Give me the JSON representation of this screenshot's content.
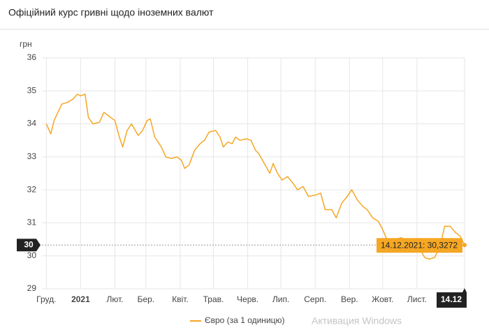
{
  "chart_data": {
    "type": "line",
    "title": "Офіційний курс гривні щодо іноземних валют",
    "y_axis_label": "грн",
    "x": [
      "01.12.2020",
      "05.12.2020",
      "08.12.2020",
      "15.12.2020",
      "20.12.2020",
      "25.12.2020",
      "29.12.2020",
      "01.01.2021",
      "05.01.2021",
      "08.01.2021",
      "12.01.2021",
      "18.01.2021",
      "22.01.2021",
      "28.01.2021",
      "01.02.2021",
      "05.02.2021",
      "08.02.2021",
      "12.02.2021",
      "16.02.2021",
      "22.02.2021",
      "26.02.2021",
      "02.03.2021",
      "05.03.2021",
      "09.03.2021",
      "15.03.2021",
      "19.03.2021",
      "24.03.2021",
      "29.03.2021",
      "02.04.2021",
      "05.04.2021",
      "09.04.2021",
      "14.04.2021",
      "19.04.2021",
      "23.04.2021",
      "27.04.2021",
      "03.05.2021",
      "07.05.2021",
      "10.05.2021",
      "14.05.2021",
      "18.05.2021",
      "21.05.2021",
      "25.05.2021",
      "31.05.2021",
      "04.06.2021",
      "08.06.2021",
      "11.06.2021",
      "16.06.2021",
      "21.06.2021",
      "24.06.2021",
      "28.06.2021",
      "02.07.2021",
      "07.07.2021",
      "12.07.2021",
      "16.07.2021",
      "21.07.2021",
      "26.07.2021",
      "02.08.2021",
      "06.08.2021",
      "10.08.2021",
      "16.08.2021",
      "20.08.2021",
      "25.08.2021",
      "30.08.2021",
      "03.09.2021",
      "08.09.2021",
      "13.09.2021",
      "17.09.2021",
      "22.09.2021",
      "27.09.2021",
      "01.10.2021",
      "06.10.2021",
      "12.10.2021",
      "18.10.2021",
      "22.10.2021",
      "27.10.2021",
      "02.11.2021",
      "08.11.2021",
      "12.11.2021",
      "17.11.2021",
      "22.11.2021",
      "26.11.2021",
      "01.12.2021",
      "06.12.2021",
      "10.12.2021",
      "14.12.2021"
    ],
    "series": [
      {
        "name": "Євро (за 1 одиницю)",
        "color": "#f5a623",
        "values": [
          34.0,
          33.7,
          34.1,
          34.6,
          34.65,
          34.75,
          34.9,
          34.85,
          34.9,
          34.2,
          34.0,
          34.05,
          34.35,
          34.2,
          34.1,
          33.6,
          33.3,
          33.8,
          34.0,
          33.65,
          33.8,
          34.1,
          34.15,
          33.6,
          33.3,
          33.0,
          32.95,
          33.0,
          32.9,
          32.65,
          32.75,
          33.2,
          33.4,
          33.5,
          33.75,
          33.8,
          33.6,
          33.3,
          33.45,
          33.4,
          33.6,
          33.5,
          33.55,
          33.5,
          33.2,
          33.1,
          32.8,
          32.5,
          32.8,
          32.5,
          32.3,
          32.4,
          32.2,
          32.0,
          32.1,
          31.8,
          31.85,
          31.9,
          31.4,
          31.4,
          31.15,
          31.6,
          31.8,
          32.0,
          31.7,
          31.5,
          31.4,
          31.15,
          31.05,
          30.8,
          30.4,
          30.5,
          30.55,
          30.45,
          30.5,
          30.3,
          29.95,
          29.9,
          29.95,
          30.3,
          30.9,
          30.9,
          30.7,
          30.6,
          30.3272
        ]
      }
    ],
    "xlim": [
      "27.11.2020",
      "14.12.2021"
    ],
    "xticks": [
      {
        "value": "01.12.2020",
        "label": "Груд."
      },
      {
        "value": "01.01.2021",
        "label": "2021"
      },
      {
        "value": "01.02.2021",
        "label": "Лют."
      },
      {
        "value": "01.03.2021",
        "label": "Бер."
      },
      {
        "value": "01.04.2021",
        "label": "Квіт."
      },
      {
        "value": "01.05.2021",
        "label": "Трав."
      },
      {
        "value": "01.06.2021",
        "label": "Черв."
      },
      {
        "value": "01.07.2021",
        "label": "Лип."
      },
      {
        "value": "01.08.2021",
        "label": "Серп."
      },
      {
        "value": "01.09.2021",
        "label": "Вер."
      },
      {
        "value": "01.10.2021",
        "label": "Жовт."
      },
      {
        "value": "01.11.2021",
        "label": "Лист."
      }
    ],
    "ylim": [
      29,
      36
    ],
    "yticks": [
      29,
      30,
      31,
      32,
      33,
      34,
      35,
      36
    ],
    "grid": true,
    "legend": "bottom",
    "tooltip": "14.12.2021: 30,3272",
    "crosshair": {
      "y_label": "30",
      "x_label": "14.12"
    },
    "watermark": "Активация Windows"
  }
}
